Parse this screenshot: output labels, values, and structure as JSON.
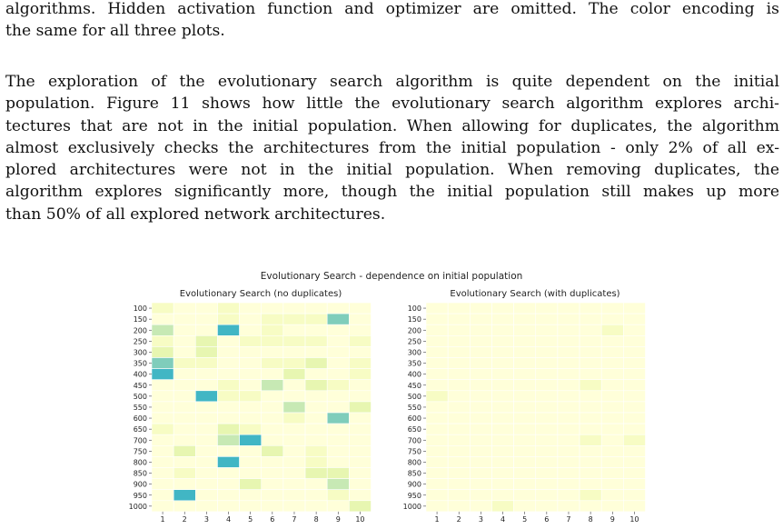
{
  "paragraph_top": {
    "lines": [
      "algorithms. Hidden activation function and optimizer are omitted. The color encoding is",
      "the same for all three plots."
    ]
  },
  "paragraph_main": {
    "lines": [
      "The exploration of the evolutionary search algorithm is quite dependent on the initial",
      "population. Figure 11 shows how little the evolutionary search algorithm explores archi-",
      "tectures that are not in the initial population. When allowing for duplicates, the algorithm",
      "almost exclusively checks the architectures from the initial population - only 2% of all ex-",
      "plored architectures were not in the initial population. When removing duplicates, the",
      "algorithm explores significantly more, though the initial population still makes up more",
      "than 50% of all explored network architectures."
    ]
  },
  "chart_data": {
    "type": "heatmap",
    "title": "Evolutionary Search - dependence on initial population",
    "colors": [
      "#ffffd9",
      "#f7fcc4",
      "#e7f6b1",
      "#c7e9b4",
      "#7fcdbb",
      "#41b6c4"
    ],
    "panels": [
      {
        "title": "Evolutionary Search (no duplicates)",
        "y_categories": [
          "100",
          "150",
          "200",
          "250",
          "300",
          "350",
          "400",
          "450",
          "500",
          "550",
          "600",
          "650",
          "700",
          "750",
          "800",
          "850",
          "900",
          "950",
          "1000"
        ],
        "x_categories": [
          "1",
          "2",
          "3",
          "4",
          "5",
          "6",
          "7",
          "8",
          "9",
          "10"
        ],
        "values": [
          [
            1,
            0,
            0,
            1,
            0,
            0,
            0,
            0,
            0,
            0
          ],
          [
            0,
            0,
            0,
            1,
            0,
            1,
            1,
            1,
            4,
            0
          ],
          [
            3,
            0,
            0,
            5,
            0,
            1,
            0,
            0,
            0,
            0
          ],
          [
            1,
            0,
            2,
            0,
            1,
            1,
            1,
            1,
            0,
            1
          ],
          [
            2,
            0,
            2,
            0,
            0,
            0,
            0,
            0,
            0,
            0
          ],
          [
            4,
            1,
            1,
            0,
            0,
            1,
            1,
            2,
            0,
            1
          ],
          [
            5,
            0,
            0,
            0,
            0,
            0,
            2,
            0,
            0,
            1
          ],
          [
            0,
            0,
            0,
            1,
            0,
            3,
            0,
            2,
            1,
            0
          ],
          [
            0,
            0,
            5,
            1,
            1,
            0,
            0,
            0,
            0,
            0
          ],
          [
            0,
            0,
            0,
            0,
            0,
            0,
            3,
            0,
            0,
            2
          ],
          [
            0,
            0,
            0,
            0,
            0,
            0,
            1,
            0,
            4,
            0
          ],
          [
            1,
            0,
            0,
            2,
            1,
            0,
            0,
            0,
            0,
            0
          ],
          [
            0,
            0,
            0,
            3,
            5,
            0,
            0,
            0,
            0,
            0
          ],
          [
            0,
            2,
            0,
            0,
            0,
            2,
            0,
            1,
            0,
            0
          ],
          [
            0,
            0,
            0,
            5,
            0,
            0,
            0,
            1,
            0,
            0
          ],
          [
            0,
            1,
            0,
            0,
            0,
            0,
            0,
            2,
            2,
            0
          ],
          [
            0,
            0,
            0,
            0,
            2,
            0,
            0,
            0,
            3,
            0
          ],
          [
            0,
            5,
            0,
            0,
            0,
            0,
            0,
            0,
            1,
            0
          ],
          [
            0,
            0,
            0,
            0,
            0,
            0,
            0,
            0,
            0,
            2
          ]
        ]
      },
      {
        "title": "Evolutionary Search (with duplicates)",
        "y_categories": [
          "100",
          "150",
          "200",
          "250",
          "300",
          "350",
          "400",
          "450",
          "500",
          "550",
          "600",
          "650",
          "700",
          "750",
          "800",
          "850",
          "900",
          "950",
          "1000"
        ],
        "x_categories": [
          "1",
          "2",
          "3",
          "4",
          "5",
          "6",
          "7",
          "8",
          "9",
          "10"
        ],
        "values": [
          [
            0,
            0,
            0,
            0,
            0,
            0,
            0,
            0,
            0,
            0
          ],
          [
            0,
            0,
            0,
            0,
            0,
            0,
            0,
            0,
            0,
            0
          ],
          [
            0,
            0,
            0,
            0,
            0,
            0,
            0,
            0,
            1,
            0
          ],
          [
            0,
            0,
            0,
            0,
            0,
            0,
            0,
            0,
            0,
            0
          ],
          [
            0,
            0,
            0,
            0,
            0,
            0,
            0,
            0,
            0,
            0
          ],
          [
            0,
            0,
            0,
            0,
            0,
            0,
            0,
            0,
            0,
            0
          ],
          [
            0,
            0,
            0,
            0,
            0,
            0,
            0,
            0,
            0,
            0
          ],
          [
            0,
            0,
            0,
            0,
            0,
            0,
            0,
            1,
            0,
            0
          ],
          [
            1,
            0,
            0,
            0,
            0,
            0,
            0,
            0,
            0,
            0
          ],
          [
            0,
            0,
            0,
            0,
            0,
            0,
            0,
            0,
            0,
            0
          ],
          [
            0,
            0,
            0,
            0,
            0,
            0,
            0,
            0,
            0,
            0
          ],
          [
            0,
            0,
            0,
            0,
            0,
            0,
            0,
            0,
            0,
            0
          ],
          [
            0,
            0,
            0,
            0,
            0,
            0,
            0,
            1,
            0,
            1
          ],
          [
            0,
            0,
            0,
            0,
            0,
            0,
            0,
            0,
            0,
            0
          ],
          [
            0,
            0,
            0,
            0,
            0,
            0,
            0,
            0,
            0,
            0
          ],
          [
            0,
            0,
            0,
            0,
            0,
            0,
            0,
            0,
            0,
            0
          ],
          [
            0,
            0,
            0,
            0,
            0,
            0,
            0,
            0,
            0,
            0
          ],
          [
            0,
            0,
            0,
            0,
            0,
            0,
            0,
            1,
            0,
            0
          ],
          [
            0,
            0,
            0,
            1,
            0,
            0,
            0,
            0,
            0,
            0
          ]
        ]
      }
    ]
  }
}
